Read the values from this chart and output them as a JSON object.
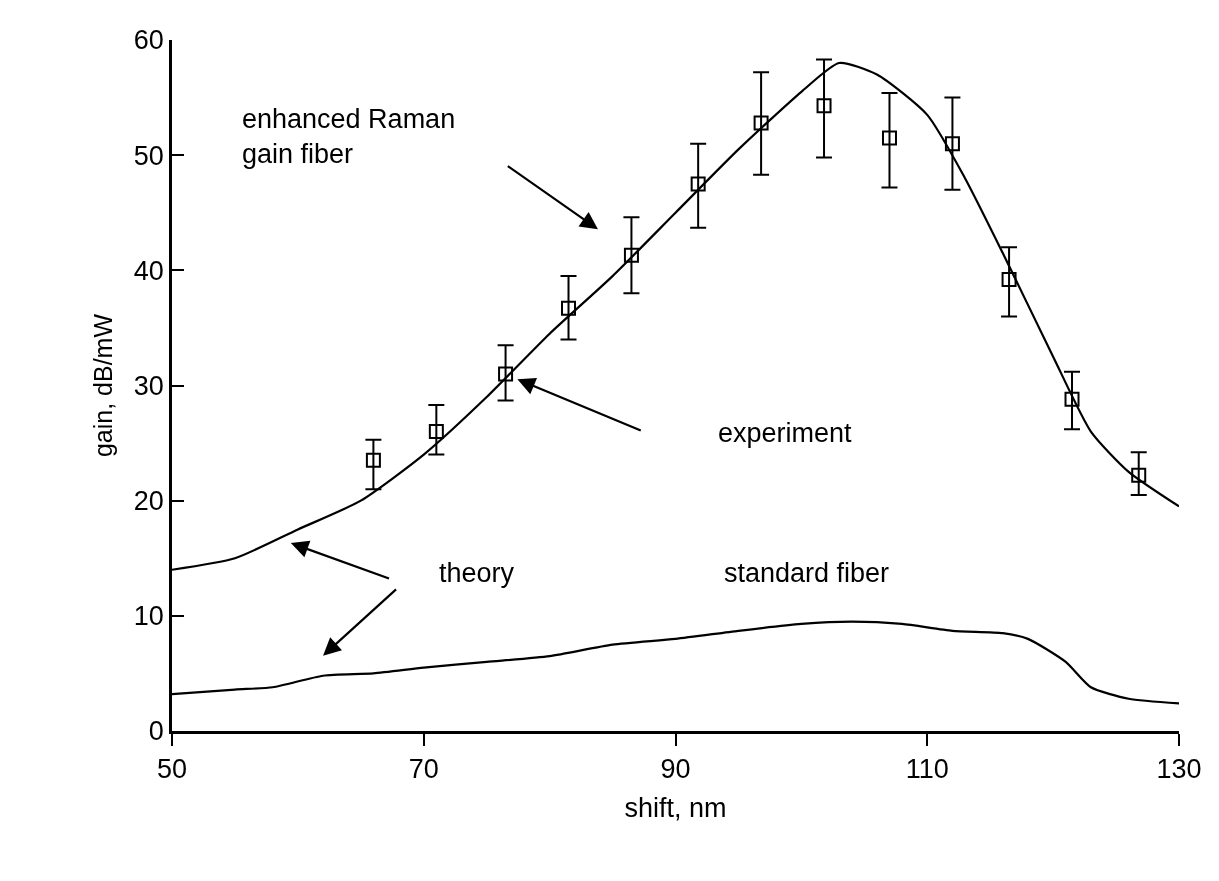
{
  "chart_data": {
    "type": "line",
    "xlabel": "shift, nm",
    "ylabel": "gain, dB/mW",
    "xlim": [
      50,
      130
    ],
    "xticks": [
      50,
      70,
      90,
      110,
      130
    ],
    "ylim": [
      0,
      60
    ],
    "yticks": [
      0,
      10,
      20,
      30,
      40,
      50,
      60
    ],
    "legend": false,
    "series": [
      {
        "color": "#000000",
        "marker": "none",
        "line_style": "solid",
        "x": [
          50,
          55,
          60,
          65,
          70,
          75,
          80,
          85,
          90,
          95,
          100,
          103,
          106,
          110,
          113,
          116,
          120,
          123,
          126,
          130
        ],
        "values": [
          14,
          15,
          17.5,
          20,
          24,
          29,
          34.5,
          39.5,
          45,
          50.5,
          55.5,
          58,
          57,
          53.5,
          48,
          41.5,
          32.5,
          26,
          22.5,
          19.5
        ]
      },
      {
        "color": "#000000",
        "marker": "none",
        "line_style": "solid",
        "x": [
          50,
          55,
          58,
          62,
          66,
          70,
          75,
          80,
          85,
          90,
          95,
          100,
          104,
          108,
          112,
          116,
          118,
          121,
          123,
          126,
          130
        ],
        "values": [
          3.2,
          3.6,
          3.8,
          4.8,
          5,
          5.5,
          6,
          6.5,
          7.5,
          8,
          8.7,
          9.3,
          9.5,
          9.3,
          8.7,
          8.5,
          8,
          6,
          3.8,
          2.8,
          2.4
        ]
      },
      {
        "type": "scatter",
        "color": "#000000",
        "marker": "square",
        "x": [
          66,
          71,
          76.5,
          81.5,
          86.5,
          91.8,
          96.8,
          101.8,
          107,
          112,
          116.5,
          121.5,
          126.8
        ],
        "values": [
          23.5,
          26,
          31,
          36.7,
          41.3,
          47.5,
          52.8,
          54.3,
          51.5,
          51,
          39.2,
          28.8,
          22.2
        ],
        "errors": [
          [
            21,
            25.3
          ],
          [
            24,
            28.3
          ],
          [
            28.7,
            33.5
          ],
          [
            34,
            39.5
          ],
          [
            38,
            44.6
          ],
          [
            43.7,
            51
          ],
          [
            48.3,
            57.2
          ],
          [
            49.8,
            58.3
          ],
          [
            47.2,
            55.4
          ],
          [
            47,
            55
          ],
          [
            36,
            42
          ],
          [
            26.2,
            31.2
          ],
          [
            20.5,
            24.2
          ]
        ]
      }
    ],
    "annotations": [
      "enhanced Raman\ngain fiber",
      "experiment",
      "theory",
      "standard fiber"
    ]
  }
}
